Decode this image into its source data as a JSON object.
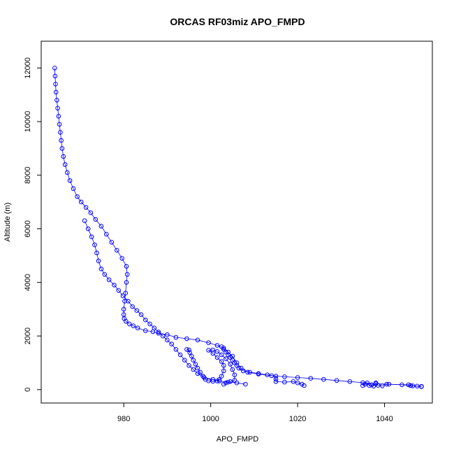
{
  "chart_data": {
    "type": "scatter",
    "title": "ORCAS RF03miz APO_FMPD",
    "xlabel": "APO_FMPD",
    "ylabel": "Altitude (m)",
    "xlim": [
      961,
      1051
    ],
    "ylim": [
      -500,
      13000
    ],
    "xticks": [
      980,
      1000,
      1020,
      1040
    ],
    "yticks": [
      0,
      2000,
      4000,
      6000,
      8000,
      10000,
      12000
    ],
    "marker": "open-circle",
    "connected": true,
    "colors": {
      "series": "#0000ff",
      "axis": "#000000",
      "background": "#ffffff"
    },
    "series": [
      {
        "values": [
          [
            964.1,
            12000
          ],
          [
            964.2,
            11700
          ],
          [
            964.3,
            11400
          ],
          [
            964.4,
            11100
          ],
          [
            964.6,
            10800
          ],
          [
            964.8,
            10500
          ],
          [
            965.0,
            10200
          ],
          [
            965.2,
            9900
          ],
          [
            965.4,
            9600
          ],
          [
            965.6,
            9300
          ],
          [
            965.8,
            9000
          ],
          [
            966.1,
            8700
          ],
          [
            966.5,
            8400
          ],
          [
            967.0,
            8100
          ],
          [
            967.6,
            7800
          ],
          [
            968.4,
            7500
          ],
          [
            969.3,
            7200
          ],
          [
            970.2,
            7000
          ],
          [
            971.3,
            6800
          ],
          [
            972.4,
            6600
          ],
          [
            973.5,
            6350
          ],
          [
            974.8,
            6100
          ],
          [
            976.0,
            5800
          ],
          [
            977.2,
            5500
          ],
          [
            978.4,
            5200
          ],
          [
            979.6,
            4900
          ],
          [
            980.6,
            4600
          ],
          [
            980.8,
            4300
          ],
          [
            980.6,
            4000
          ],
          [
            980.4,
            3600
          ],
          [
            980.2,
            3300
          ],
          [
            980.0,
            3000
          ],
          [
            980.0,
            2800
          ],
          [
            980.1,
            2650
          ],
          [
            980.5,
            2550
          ],
          [
            981.3,
            2450
          ],
          [
            982.2,
            2380
          ],
          [
            983.2,
            2300
          ],
          [
            985.0,
            2200
          ],
          [
            986.7,
            2160
          ],
          [
            988.0,
            2100
          ],
          [
            990.0,
            2050
          ],
          [
            992.0,
            1950
          ],
          [
            994.5,
            1900
          ],
          [
            997.0,
            1850
          ],
          [
            999.5,
            1750
          ],
          [
            1001.5,
            1650
          ],
          [
            1003.0,
            1550
          ],
          [
            1004.0,
            1400
          ],
          [
            1005.0,
            1250
          ],
          [
            1006.0,
            1000
          ],
          [
            1007.0,
            800
          ],
          [
            1008.5,
            650
          ],
          [
            1011.0,
            580
          ],
          [
            1014.0,
            520
          ],
          [
            1017.0,
            480
          ],
          [
            1020.0,
            450
          ],
          [
            1023.0,
            420
          ],
          [
            1026.0,
            380
          ],
          [
            1029.0,
            340
          ],
          [
            1032.0,
            300
          ],
          [
            1035.0,
            260
          ],
          [
            1038.0,
            220
          ],
          [
            1041.0,
            200
          ],
          [
            1044.0,
            180
          ],
          [
            1046.0,
            150
          ],
          [
            1048.5,
            120
          ]
        ]
      },
      {
        "values": [
          [
            971.0,
            6300
          ],
          [
            971.8,
            6000
          ],
          [
            972.6,
            5700
          ],
          [
            973.3,
            5400
          ],
          [
            973.8,
            5100
          ],
          [
            974.2,
            4800
          ],
          [
            974.8,
            4500
          ],
          [
            975.6,
            4300
          ],
          [
            976.6,
            4100
          ],
          [
            977.8,
            3900
          ],
          [
            978.8,
            3700
          ],
          [
            979.8,
            3500
          ],
          [
            981.0,
            3300
          ],
          [
            982.0,
            3100
          ],
          [
            983.0,
            2950
          ],
          [
            984.0,
            2800
          ],
          [
            985.0,
            2600
          ],
          [
            986.0,
            2450
          ],
          [
            987.0,
            2300
          ],
          [
            988.0,
            2150
          ],
          [
            989.0,
            2000
          ],
          [
            990.0,
            1850
          ],
          [
            991.0,
            1700
          ],
          [
            992.0,
            1500
          ],
          [
            993.0,
            1300
          ],
          [
            994.0,
            1100
          ],
          [
            995.0,
            900
          ],
          [
            996.0,
            750
          ],
          [
            997.0,
            600
          ],
          [
            998.5,
            450
          ],
          [
            1000.5,
            380
          ],
          [
            1002.0,
            320
          ],
          [
            1004.0,
            280
          ],
          [
            1006.0,
            250
          ],
          [
            1008.0,
            200
          ]
        ]
      },
      {
        "values": [
          [
            994.5,
            1500
          ],
          [
            995.0,
            1480
          ],
          [
            995.2,
            1380
          ],
          [
            995.6,
            1250
          ],
          [
            996.0,
            1100
          ],
          [
            996.5,
            950
          ],
          [
            997.0,
            800
          ],
          [
            997.6,
            650
          ],
          [
            998.2,
            500
          ],
          [
            998.8,
            380
          ],
          [
            999.5,
            330
          ],
          [
            1000.5,
            310
          ],
          [
            1001.5,
            320
          ],
          [
            1002.0,
            380
          ],
          [
            1002.5,
            500
          ],
          [
            1003.0,
            700
          ],
          [
            1003.0,
            900
          ],
          [
            1002.5,
            1050
          ],
          [
            1001.5,
            1200
          ],
          [
            1000.5,
            1350
          ],
          [
            999.5,
            1470
          ],
          [
            1000.5,
            1480
          ],
          [
            1001.5,
            1420
          ],
          [
            1002.5,
            1300
          ],
          [
            1003.5,
            1150
          ],
          [
            1004.5,
            950
          ],
          [
            1005.0,
            750
          ],
          [
            1005.5,
            550
          ],
          [
            1005.5,
            350
          ],
          [
            1004.5,
            300
          ],
          [
            1003.5,
            250
          ],
          [
            1003.0,
            200
          ]
        ]
      },
      {
        "values": [
          [
            1002.5,
            1600
          ],
          [
            1003.0,
            1500
          ],
          [
            1003.5,
            1400
          ],
          [
            1004.0,
            1300
          ],
          [
            1004.5,
            1200
          ],
          [
            1005.0,
            1100
          ],
          [
            1005.5,
            1000
          ],
          [
            1006.0,
            900
          ],
          [
            1006.5,
            800
          ],
          [
            1007.5,
            700
          ],
          [
            1009.0,
            650
          ],
          [
            1011.0,
            600
          ],
          [
            1013.0,
            550
          ],
          [
            1015.0,
            500
          ],
          [
            1015.0,
            400
          ],
          [
            1015.0,
            300
          ],
          [
            1017.0,
            280
          ],
          [
            1019.0,
            300
          ],
          [
            1020.0,
            250
          ],
          [
            1021.0,
            200
          ],
          [
            1021.5,
            150
          ]
        ]
      },
      {
        "values": [
          [
            1035.0,
            150
          ],
          [
            1035.5,
            200
          ],
          [
            1036.0,
            250
          ],
          [
            1036.5,
            150
          ],
          [
            1037.0,
            180
          ],
          [
            1037.5,
            130
          ],
          [
            1038.0,
            250
          ],
          [
            1038.5,
            160
          ],
          [
            1039.5,
            140
          ],
          [
            1040.5,
            200
          ],
          [
            1045.5,
            180
          ],
          [
            1046.0,
            150
          ],
          [
            1046.5,
            140
          ],
          [
            1047.5,
            130
          ],
          [
            1048.5,
            110
          ]
        ]
      }
    ]
  }
}
